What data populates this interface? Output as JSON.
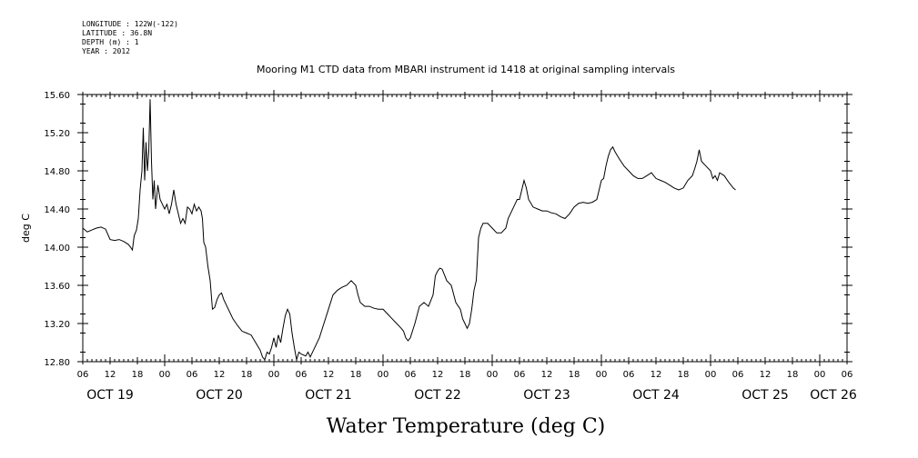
{
  "meta_lines": [
    "LONGITUDE : 122W(-122)",
    "LATITUDE : 36.8N",
    "DEPTH (m) : 1",
    "YEAR : 2012"
  ],
  "chart_data": {
    "type": "line",
    "title": "Mooring M1 CTD data from MBARI instrument id 1418 at original sampling intervals",
    "xlabel": "Water Temperature (deg C)",
    "ylabel": "deg C",
    "ylim": [
      12.8,
      15.6
    ],
    "yticks": [
      "12.80",
      "13.20",
      "13.60",
      "14.00",
      "14.40",
      "14.80",
      "15.20",
      "15.60"
    ],
    "xlim": [
      6,
      174
    ],
    "xticks": [
      {
        "h": 6,
        "label": "06"
      },
      {
        "h": 12,
        "label": "12"
      },
      {
        "h": 18,
        "label": "18"
      },
      {
        "h": 24,
        "label": "00"
      },
      {
        "h": 30,
        "label": "06"
      },
      {
        "h": 36,
        "label": "12"
      },
      {
        "h": 42,
        "label": "18"
      },
      {
        "h": 48,
        "label": "00"
      },
      {
        "h": 54,
        "label": "06"
      },
      {
        "h": 60,
        "label": "12"
      },
      {
        "h": 66,
        "label": "18"
      },
      {
        "h": 72,
        "label": "00"
      },
      {
        "h": 78,
        "label": "06"
      },
      {
        "h": 84,
        "label": "12"
      },
      {
        "h": 90,
        "label": "18"
      },
      {
        "h": 96,
        "label": "00"
      },
      {
        "h": 102,
        "label": "06"
      },
      {
        "h": 108,
        "label": "12"
      },
      {
        "h": 114,
        "label": "18"
      },
      {
        "h": 120,
        "label": "00"
      },
      {
        "h": 126,
        "label": "06"
      },
      {
        "h": 132,
        "label": "12"
      },
      {
        "h": 138,
        "label": "18"
      },
      {
        "h": 144,
        "label": "00"
      },
      {
        "h": 150,
        "label": "06"
      },
      {
        "h": 156,
        "label": "12"
      },
      {
        "h": 162,
        "label": "18"
      },
      {
        "h": 168,
        "label": "00"
      },
      {
        "h": 174,
        "label": "06"
      }
    ],
    "day_labels": [
      {
        "h": 12,
        "label": "OCT 19"
      },
      {
        "h": 36,
        "label": "OCT 20"
      },
      {
        "h": 60,
        "label": "OCT 21"
      },
      {
        "h": 84,
        "label": "OCT 22"
      },
      {
        "h": 108,
        "label": "OCT 23"
      },
      {
        "h": 132,
        "label": "OCT 24"
      },
      {
        "h": 156,
        "label": "OCT 25"
      },
      {
        "h": 171,
        "label": "OCT 26"
      }
    ],
    "series": [
      {
        "points": [
          [
            6,
            14.2
          ],
          [
            7,
            14.16
          ],
          [
            8,
            14.18
          ],
          [
            9,
            14.2
          ],
          [
            10,
            14.21
          ],
          [
            11,
            14.19
          ],
          [
            12,
            14.08
          ],
          [
            13,
            14.07
          ],
          [
            14,
            14.08
          ],
          [
            15,
            14.06
          ],
          [
            16,
            14.03
          ],
          [
            16.5,
            14.0
          ],
          [
            16.9,
            13.97
          ],
          [
            17.3,
            14.12
          ],
          [
            17.8,
            14.18
          ],
          [
            18.2,
            14.3
          ],
          [
            18.6,
            14.6
          ],
          [
            19,
            14.8
          ],
          [
            19.3,
            15.25
          ],
          [
            19.6,
            14.7
          ],
          [
            19.9,
            15.1
          ],
          [
            20.2,
            14.8
          ],
          [
            20.5,
            15.0
          ],
          [
            20.8,
            15.55
          ],
          [
            21.1,
            14.9
          ],
          [
            21.4,
            14.5
          ],
          [
            21.7,
            14.7
          ],
          [
            22,
            14.4
          ],
          [
            22.5,
            14.65
          ],
          [
            23,
            14.5
          ],
          [
            23.5,
            14.45
          ],
          [
            24,
            14.4
          ],
          [
            24.5,
            14.45
          ],
          [
            25,
            14.35
          ],
          [
            25.5,
            14.45
          ],
          [
            26,
            14.6
          ],
          [
            26.5,
            14.45
          ],
          [
            27,
            14.35
          ],
          [
            27.5,
            14.25
          ],
          [
            28,
            14.3
          ],
          [
            28.5,
            14.25
          ],
          [
            29,
            14.42
          ],
          [
            29.5,
            14.4
          ],
          [
            30,
            14.35
          ],
          [
            30.5,
            14.45
          ],
          [
            31,
            14.38
          ],
          [
            31.5,
            14.42
          ],
          [
            32,
            14.38
          ],
          [
            32.3,
            14.3
          ],
          [
            32.6,
            14.05
          ],
          [
            33,
            14.0
          ],
          [
            33.5,
            13.8
          ],
          [
            34,
            13.65
          ],
          [
            34.5,
            13.35
          ],
          [
            35,
            13.37
          ],
          [
            35.5,
            13.45
          ],
          [
            36,
            13.5
          ],
          [
            36.5,
            13.52
          ],
          [
            37,
            13.45
          ],
          [
            38,
            13.35
          ],
          [
            39,
            13.25
          ],
          [
            40,
            13.18
          ],
          [
            41,
            13.12
          ],
          [
            42,
            13.1
          ],
          [
            43,
            13.08
          ],
          [
            44,
            13.0
          ],
          [
            45,
            12.92
          ],
          [
            45.5,
            12.85
          ],
          [
            46,
            12.82
          ],
          [
            46.5,
            12.9
          ],
          [
            47,
            12.88
          ],
          [
            47.5,
            12.95
          ],
          [
            48,
            13.05
          ],
          [
            48.5,
            12.95
          ],
          [
            49,
            13.08
          ],
          [
            49.5,
            13.0
          ],
          [
            50,
            13.15
          ],
          [
            50.5,
            13.28
          ],
          [
            51,
            13.35
          ],
          [
            51.5,
            13.3
          ],
          [
            52,
            13.1
          ],
          [
            52.5,
            12.95
          ],
          [
            53,
            12.82
          ],
          [
            53.5,
            12.9
          ],
          [
            54,
            12.88
          ],
          [
            55,
            12.86
          ],
          [
            55.5,
            12.9
          ],
          [
            56,
            12.85
          ],
          [
            57,
            12.95
          ],
          [
            58,
            13.05
          ],
          [
            59,
            13.2
          ],
          [
            60,
            13.35
          ],
          [
            61,
            13.5
          ],
          [
            62,
            13.55
          ],
          [
            63,
            13.58
          ],
          [
            64,
            13.6
          ],
          [
            65,
            13.65
          ],
          [
            66,
            13.6
          ],
          [
            66.5,
            13.5
          ],
          [
            67,
            13.42
          ],
          [
            68,
            13.38
          ],
          [
            69,
            13.38
          ],
          [
            70,
            13.36
          ],
          [
            71,
            13.35
          ],
          [
            72,
            13.35
          ],
          [
            73,
            13.3
          ],
          [
            74,
            13.25
          ],
          [
            75,
            13.2
          ],
          [
            76,
            13.15
          ],
          [
            76.5,
            13.12
          ],
          [
            77,
            13.05
          ],
          [
            77.5,
            13.02
          ],
          [
            78,
            13.05
          ],
          [
            79,
            13.2
          ],
          [
            80,
            13.38
          ],
          [
            81,
            13.42
          ],
          [
            82,
            13.38
          ],
          [
            83,
            13.5
          ],
          [
            83.5,
            13.7
          ],
          [
            84,
            13.75
          ],
          [
            84.5,
            13.78
          ],
          [
            85,
            13.77
          ],
          [
            86,
            13.65
          ],
          [
            87,
            13.6
          ],
          [
            88,
            13.42
          ],
          [
            89,
            13.35
          ],
          [
            89.5,
            13.25
          ],
          [
            90,
            13.2
          ],
          [
            90.5,
            13.15
          ],
          [
            91,
            13.2
          ],
          [
            91.5,
            13.35
          ],
          [
            92,
            13.55
          ],
          [
            92.5,
            13.65
          ],
          [
            93,
            14.1
          ],
          [
            93.5,
            14.2
          ],
          [
            94,
            14.25
          ],
          [
            95,
            14.25
          ],
          [
            96,
            14.2
          ],
          [
            97,
            14.15
          ],
          [
            98,
            14.15
          ],
          [
            99,
            14.2
          ],
          [
            99.5,
            14.3
          ],
          [
            100,
            14.35
          ],
          [
            101,
            14.45
          ],
          [
            101.5,
            14.5
          ],
          [
            102,
            14.5
          ],
          [
            102.5,
            14.6
          ],
          [
            103,
            14.7
          ],
          [
            103.5,
            14.62
          ],
          [
            104,
            14.5
          ],
          [
            105,
            14.42
          ],
          [
            106,
            14.4
          ],
          [
            107,
            14.38
          ],
          [
            108,
            14.38
          ],
          [
            109,
            14.36
          ],
          [
            110,
            14.35
          ],
          [
            111,
            14.32
          ],
          [
            112,
            14.3
          ],
          [
            113,
            14.35
          ],
          [
            114,
            14.42
          ],
          [
            115,
            14.46
          ],
          [
            116,
            14.47
          ],
          [
            117,
            14.46
          ],
          [
            118,
            14.47
          ],
          [
            119,
            14.5
          ],
          [
            119.5,
            14.6
          ],
          [
            120,
            14.7
          ],
          [
            120.5,
            14.72
          ],
          [
            121,
            14.85
          ],
          [
            121.5,
            14.95
          ],
          [
            122,
            15.02
          ],
          [
            122.5,
            15.05
          ],
          [
            123,
            15.0
          ],
          [
            124,
            14.92
          ],
          [
            125,
            14.85
          ],
          [
            126,
            14.8
          ],
          [
            127,
            14.75
          ],
          [
            128,
            14.72
          ],
          [
            129,
            14.72
          ],
          [
            130,
            14.75
          ],
          [
            131,
            14.78
          ],
          [
            132,
            14.72
          ],
          [
            133,
            14.7
          ],
          [
            134,
            14.68
          ],
          [
            135,
            14.65
          ],
          [
            136,
            14.62
          ],
          [
            137,
            14.6
          ],
          [
            138,
            14.62
          ],
          [
            139,
            14.7
          ],
          [
            140,
            14.75
          ],
          [
            140.5,
            14.82
          ],
          [
            141,
            14.9
          ],
          [
            141.5,
            15.02
          ],
          [
            142,
            14.9
          ],
          [
            143,
            14.85
          ],
          [
            144,
            14.8
          ],
          [
            144.5,
            14.72
          ],
          [
            145,
            14.75
          ],
          [
            145.5,
            14.7
          ],
          [
            146,
            14.78
          ],
          [
            147,
            14.75
          ],
          [
            148,
            14.68
          ],
          [
            149,
            14.62
          ],
          [
            149.5,
            14.6
          ]
        ]
      }
    ]
  }
}
